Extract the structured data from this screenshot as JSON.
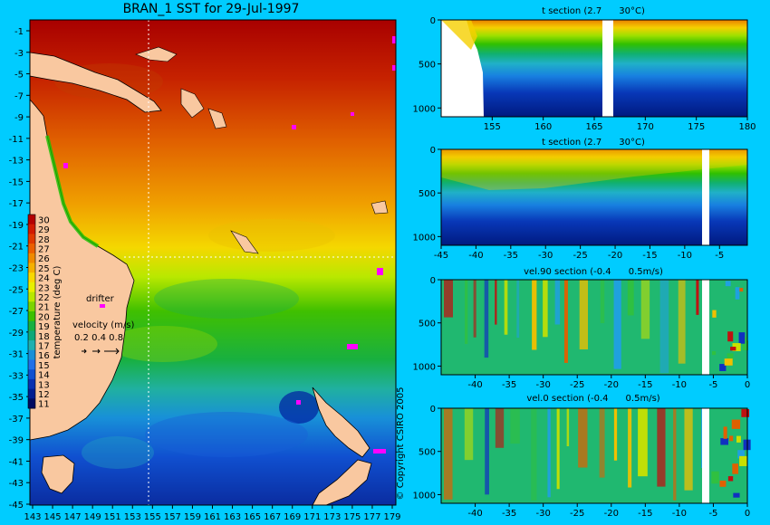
{
  "map": {
    "title": "BRAN_1 SST for 29-Jul-1997",
    "lon_ticks": [
      "143",
      "145",
      "147",
      "149",
      "151",
      "153",
      "155",
      "157",
      "159",
      "161",
      "163",
      "165",
      "167",
      "169",
      "171",
      "173",
      "175",
      "177",
      "179"
    ],
    "lat_ticks": [
      "-1",
      "-3",
      "-5",
      "-7",
      "-9",
      "-11",
      "-13",
      "-15",
      "-17",
      "-19",
      "-21",
      "-23",
      "-25",
      "-27",
      "-29",
      "-31",
      "-33",
      "-35",
      "-37",
      "-39",
      "-41",
      "-43",
      "-45"
    ],
    "colorbar": {
      "label": "temperature (deg C)",
      "ticks": [
        "30",
        "29",
        "28",
        "27",
        "26",
        "25",
        "24",
        "23",
        "22",
        "21",
        "20",
        "19",
        "18",
        "17",
        "16",
        "15",
        "14",
        "13",
        "12",
        "11"
      ],
      "colors": [
        "#b40000",
        "#d21a00",
        "#e03a00",
        "#ec6000",
        "#f08a00",
        "#f5b000",
        "#f8d800",
        "#e8f000",
        "#b8e800",
        "#7cd400",
        "#3cc000",
        "#18b040",
        "#10a878",
        "#20b0b0",
        "#1890d8",
        "#2070e8",
        "#1050d0",
        "#0830b0",
        "#001c90",
        "#000a60"
      ]
    },
    "drifter_label": "drifter",
    "velocity_label": "velocity (m/s)",
    "velocity_values": "0.2 0.4 0.8",
    "copyright": "© Copyright CSIRO 2005"
  },
  "chart_data": [
    {
      "type": "heatmap",
      "title": "t section (2.7      30°C)",
      "x_ticks": [
        "155",
        "160",
        "165",
        "170",
        "175",
        "180"
      ],
      "xlim": [
        150,
        180
      ],
      "y_ticks": [
        "0",
        "500",
        "1000"
      ],
      "ylim": [
        0,
        1100
      ]
    },
    {
      "type": "heatmap",
      "title": "t section (2.7      30°C)",
      "x_ticks": [
        "-45",
        "-40",
        "-35",
        "-30",
        "-25",
        "-20",
        "-15",
        "-10",
        "-5"
      ],
      "xlim": [
        -45,
        -1
      ],
      "y_ticks": [
        "0",
        "500",
        "1000"
      ],
      "ylim": [
        0,
        1100
      ]
    },
    {
      "type": "heatmap",
      "title": "vel.90 section (-0.4      0.5m/s)",
      "x_ticks": [
        "-40",
        "-35",
        "-30",
        "-25",
        "-20",
        "-15",
        "-10",
        "-5",
        "0"
      ],
      "xlim": [
        -45,
        0
      ],
      "y_ticks": [
        "0",
        "500",
        "1000"
      ],
      "ylim": [
        0,
        1100
      ]
    },
    {
      "type": "heatmap",
      "title": "vel.0 section (-0.4      0.5m/s)",
      "x_ticks": [
        "-40",
        "-35",
        "-30",
        "-25",
        "-20",
        "-15",
        "-10",
        "-5",
        "0"
      ],
      "xlim": [
        -45,
        0
      ],
      "y_ticks": [
        "0",
        "500",
        "1000"
      ],
      "ylim": [
        0,
        1100
      ]
    }
  ]
}
